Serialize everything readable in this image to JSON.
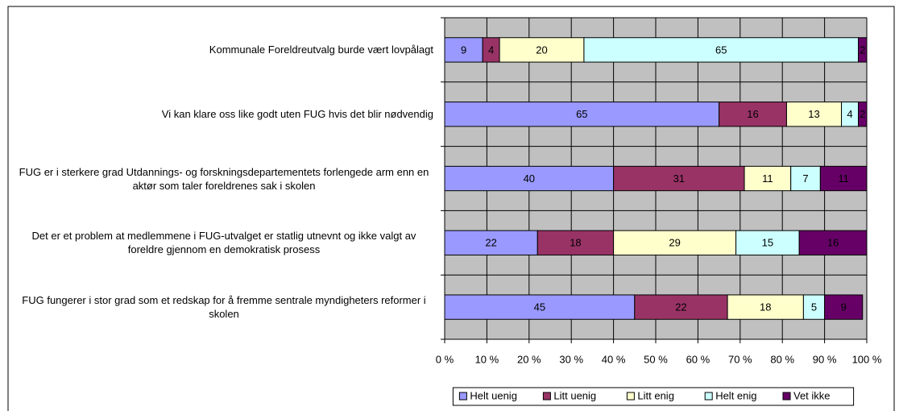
{
  "chart_data": {
    "type": "stacked-barh",
    "categories": [
      "Kommunale Foreldreutvalg burde vært lovpålagt",
      "Vi kan klare oss like godt uten FUG hvis det blir nødvendig",
      "FUG er i sterkere grad Utdannings- og forskningsdepartementets forlengede arm enn en aktør som taler foreldrenes sak i skolen",
      "Det er et problem at medlemmene i FUG-utvalget er statlig utnevnt og ikke valgt av foreldre gjennom en demokratisk prosess",
      "FUG fungerer i stor grad som et redskap for å fremme sentrale myndigheters reformer i skolen"
    ],
    "series": [
      {
        "name": "Helt uenig",
        "color": "#9999ff",
        "values": [
          9,
          65,
          40,
          22,
          45
        ]
      },
      {
        "name": "Litt uenig",
        "color": "#993366",
        "values": [
          4,
          16,
          31,
          18,
          22
        ]
      },
      {
        "name": "Litt enig",
        "color": "#ffffcc",
        "values": [
          20,
          13,
          11,
          29,
          18
        ]
      },
      {
        "name": "Helt enig",
        "color": "#ccffff",
        "values": [
          65,
          4,
          7,
          15,
          5
        ]
      },
      {
        "name": "Vet ikke",
        "color": "#660066",
        "values": [
          2,
          2,
          11,
          16,
          9
        ]
      }
    ],
    "xlim": [
      0,
      100
    ],
    "xticks": [
      {
        "value": 0,
        "label": "0 %"
      },
      {
        "value": 10,
        "label": "10 %"
      },
      {
        "value": 20,
        "label": "20 %"
      },
      {
        "value": 30,
        "label": "30 %"
      },
      {
        "value": 40,
        "label": "40 %"
      },
      {
        "value": 50,
        "label": "50 %"
      },
      {
        "value": 60,
        "label": "60 %"
      },
      {
        "value": 70,
        "label": "70 %"
      },
      {
        "value": 80,
        "label": "80 %"
      },
      {
        "value": 90,
        "label": "90 %"
      },
      {
        "value": 100,
        "label": "100 %"
      }
    ],
    "grid": true,
    "legend": "bottom"
  }
}
